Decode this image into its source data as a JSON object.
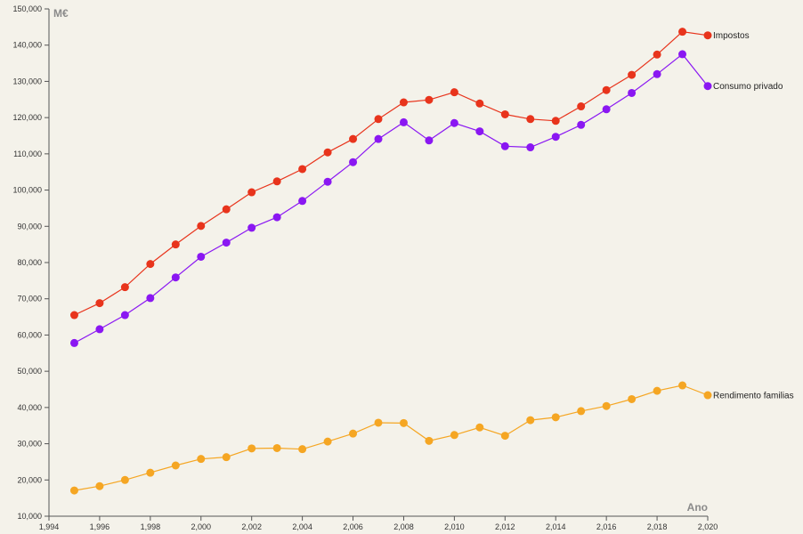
{
  "chart_data": {
    "type": "line",
    "title": "",
    "xlabel": "Ano",
    "ylabel": "M€",
    "xlim": [
      1994,
      2020
    ],
    "ylim": [
      10000,
      150000
    ],
    "x_ticks": [
      1994,
      1996,
      1998,
      2000,
      2002,
      2004,
      2006,
      2008,
      2010,
      2012,
      2014,
      2016,
      2018,
      2020
    ],
    "x_tick_labels": [
      "1,994",
      "1,996",
      "1,998",
      "2,000",
      "2,002",
      "2,004",
      "2,006",
      "2,008",
      "2,010",
      "2,012",
      "2,014",
      "2,016",
      "2,018",
      "2,020"
    ],
    "y_ticks": [
      10000,
      20000,
      30000,
      40000,
      50000,
      60000,
      70000,
      80000,
      90000,
      100000,
      110000,
      120000,
      130000,
      140000,
      150000
    ],
    "y_tick_labels": [
      "10,000",
      "20,000",
      "30,000",
      "40,000",
      "50,000",
      "60,000",
      "70,000",
      "80,000",
      "90,000",
      "100,000",
      "110,000",
      "120,000",
      "130,000",
      "140,000",
      "150,000"
    ],
    "grid": false,
    "x": [
      1995,
      1996,
      1997,
      1998,
      1999,
      2000,
      2001,
      2002,
      2003,
      2004,
      2005,
      2006,
      2007,
      2008,
      2009,
      2010,
      2011,
      2012,
      2013,
      2014,
      2015,
      2016,
      2017,
      2018,
      2019,
      2020
    ],
    "series": [
      {
        "name": "Impostos",
        "color": "#e8341c",
        "values": [
          65500,
          68800,
          73200,
          79600,
          85000,
          90100,
          94700,
          99400,
          102400,
          105800,
          110400,
          114100,
          119600,
          124200,
          124900,
          127000,
          123900,
          120900,
          119600,
          119100,
          123100,
          127600,
          131800,
          137400,
          143700,
          142700
        ]
      },
      {
        "name": "Consumo privado",
        "color": "#8a17f2",
        "values": [
          57800,
          61600,
          65500,
          70200,
          75900,
          81600,
          85500,
          89600,
          92500,
          97000,
          102300,
          107700,
          114100,
          118700,
          113700,
          118500,
          116200,
          112100,
          111800,
          114700,
          118000,
          122300,
          126800,
          132000,
          137500,
          128700
        ]
      },
      {
        "name": "Rendimento familias",
        "color": "#f5a623",
        "values": [
          17100,
          18300,
          20000,
          22000,
          24000,
          25800,
          26300,
          28700,
          28800,
          28500,
          30600,
          32800,
          35800,
          35700,
          30800,
          32400,
          34500,
          32200,
          36500,
          37300,
          39000,
          40400,
          42300,
          44600,
          46100,
          43400
        ]
      }
    ]
  }
}
